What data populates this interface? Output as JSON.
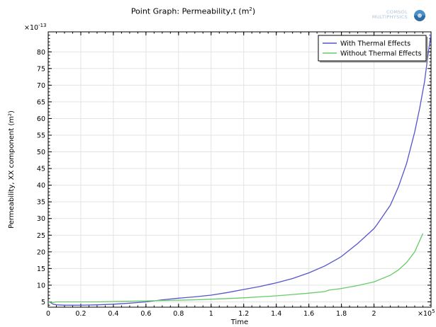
{
  "header": {
    "title_main": "Point Graph: Permeability,t (m",
    "title_sup": "2",
    "title_close": ")",
    "logo_line1": "COMSOL",
    "logo_line2": "MULTIPHYSICS"
  },
  "chart_data": {
    "type": "line",
    "title": "Point Graph: Permeability,t (m²)",
    "xlabel": "Time",
    "ylabel": "Permeability, XX component (m²)",
    "x_multiplier": "×10",
    "x_multiplier_exp": "5",
    "y_multiplier": "×10",
    "y_multiplier_exp": "-13",
    "xlim": [
      0,
      2.35
    ],
    "ylim": [
      3.4,
      86
    ],
    "x_ticks": [
      0,
      0.2,
      0.4,
      0.6,
      0.8,
      1,
      1.2,
      1.4,
      1.6,
      1.8,
      2
    ],
    "x_tick_labels": [
      "0",
      "0.2",
      "0.4",
      "0.6",
      "0.8",
      "1",
      "1.2",
      "1.4",
      "1.6",
      "1.8",
      "2"
    ],
    "y_ticks": [
      5,
      10,
      15,
      20,
      25,
      30,
      35,
      40,
      45,
      50,
      55,
      60,
      65,
      70,
      75,
      80
    ],
    "y_tick_labels": [
      "5",
      "10",
      "15",
      "20",
      "25",
      "30",
      "35",
      "40",
      "45",
      "50",
      "55",
      "60",
      "65",
      "70",
      "75",
      "80"
    ],
    "grid": true,
    "legend_position": "top-right",
    "series": [
      {
        "name": "With Thermal Effects",
        "color": "#5555cc",
        "x": [
          0,
          0.03,
          0.05,
          0.1,
          0.2,
          0.3,
          0.4,
          0.5,
          0.6,
          0.7,
          0.8,
          0.9,
          1.0,
          1.1,
          1.2,
          1.3,
          1.4,
          1.5,
          1.6,
          1.7,
          1.78,
          1.8,
          1.9,
          2.0,
          2.02,
          2.1,
          2.15,
          2.2,
          2.25,
          2.28,
          2.31,
          2.33,
          2.35
        ],
        "y": [
          5.2,
          4.3,
          4.1,
          4.0,
          4.0,
          4.1,
          4.3,
          4.6,
          5.0,
          5.6,
          6.1,
          6.5,
          7.0,
          7.8,
          8.7,
          9.6,
          10.7,
          12.0,
          13.7,
          15.8,
          18.0,
          18.6,
          22.5,
          27.0,
          28.3,
          34.0,
          39.5,
          46.5,
          56.0,
          63.0,
          71.0,
          78.5,
          85.5
        ]
      },
      {
        "name": "Without Thermal Effects",
        "color": "#66cc66",
        "x": [
          0,
          0.03,
          0.05,
          0.1,
          0.2,
          0.3,
          0.4,
          0.5,
          0.6,
          0.7,
          0.8,
          0.9,
          1.0,
          1.1,
          1.2,
          1.3,
          1.4,
          1.5,
          1.6,
          1.7,
          1.72,
          1.8,
          1.9,
          2.0,
          2.1,
          2.15,
          2.2,
          2.25,
          2.3
        ],
        "y": [
          5.0,
          4.8,
          5.0,
          5.0,
          5.0,
          5.0,
          5.1,
          5.2,
          5.3,
          5.4,
          5.5,
          5.6,
          5.8,
          6.0,
          6.2,
          6.5,
          6.8,
          7.2,
          7.6,
          8.1,
          8.5,
          9.0,
          9.9,
          11.0,
          13.0,
          14.6,
          16.8,
          20.0,
          25.5
        ]
      }
    ]
  }
}
